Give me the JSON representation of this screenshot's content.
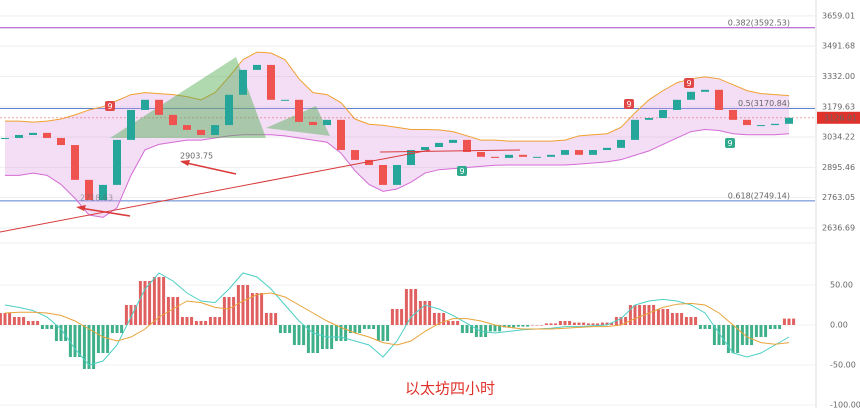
{
  "chart_data": {
    "type": "candlestick",
    "title": "以太坊四小时",
    "log_scale": true,
    "ylim": [
      2588,
      3750
    ],
    "yticks": [
      {
        "value": 3659.01,
        "label": "3659.01"
      },
      {
        "value": 3491.68,
        "label": "3491.68"
      },
      {
        "value": 3332.0,
        "label": "3332.00"
      },
      {
        "value": 3179.63,
        "label": "3179.63"
      },
      {
        "value": 3034.22,
        "label": "3034.22"
      },
      {
        "value": 2895.46,
        "label": "2895.46"
      },
      {
        "value": 2763.05,
        "label": "2763.05"
      },
      {
        "value": 2636.69,
        "label": "2636.69"
      }
    ],
    "last_price": {
      "value": 3126.01,
      "label": "3126.01"
    },
    "fib_levels": [
      {
        "value": 3592.53,
        "label": "0.382(3592.53)",
        "color": "#a646c8"
      },
      {
        "value": 3170.84,
        "label": "0.5(3170.84)",
        "color": "#5b7fd1"
      },
      {
        "value": 2749.14,
        "label": "0.618(2749.14)",
        "color": "#5b7fd1"
      }
    ],
    "annotations": [
      "2903.75",
      "2718.63"
    ],
    "markers": [
      "9",
      "9",
      "9",
      "9",
      "9"
    ],
    "up_color": "#26a69a",
    "down_color": "#ef5350",
    "close": [
      3030,
      3044,
      3054,
      3030,
      2997,
      2840,
      2753,
      2818,
      3021,
      3164,
      3214,
      3140,
      3091,
      3068,
      3044,
      3091,
      3239,
      3366,
      3392,
      3214,
      3214,
      3106,
      3091,
      3116,
      2974,
      2929,
      2906,
      2818,
      2906,
      2974,
      2988,
      3007,
      3021,
      2965,
      2943,
      2938,
      2952,
      2943,
      2943,
      2952,
      2974,
      2952,
      2974,
      2984,
      3021,
      3116,
      3125,
      3164,
      3214,
      3254,
      3264,
      3164,
      3116,
      3091,
      3091,
      3097,
      3126
    ],
    "bands": {
      "upper": [
        3110,
        3110,
        3105,
        3110,
        3120,
        3140,
        3164,
        3180,
        3210,
        3240,
        3250,
        3245,
        3240,
        3230,
        3214,
        3250,
        3330,
        3420,
        3460,
        3455,
        3420,
        3320,
        3250,
        3240,
        3200,
        3120,
        3095,
        3090,
        3080,
        3070,
        3070,
        3068,
        3060,
        3040,
        3020,
        3020,
        3015,
        3015,
        3015,
        3015,
        3020,
        3040,
        3045,
        3050,
        3080,
        3150,
        3214,
        3260,
        3300,
        3320,
        3330,
        3320,
        3290,
        3260,
        3245,
        3240,
        3235
      ],
      "lower": [
        2860,
        2860,
        2870,
        2860,
        2820,
        2760,
        2690,
        2680,
        2720,
        2860,
        2975,
        3000,
        3010,
        3020,
        3020,
        3030,
        3040,
        3045,
        3045,
        3045,
        3040,
        3030,
        3020,
        3010,
        2960,
        2880,
        2820,
        2790,
        2800,
        2830,
        2870,
        2885,
        2890,
        2895,
        2900,
        2905,
        2906,
        2906,
        2906,
        2906,
        2906,
        2910,
        2915,
        2920,
        2930,
        2950,
        2970,
        3000,
        3030,
        3060,
        3070,
        3065,
        3050,
        3045,
        3045,
        3045,
        3050
      ]
    },
    "macd": {
      "ylim": [
        -100,
        100
      ],
      "yticks": [
        {
          "value": 50,
          "label": "50.00"
        },
        {
          "value": 0,
          "label": "0.00"
        },
        {
          "value": -50,
          "label": "-50.00"
        },
        {
          "value": -100,
          "label": "-100.00"
        }
      ],
      "histogram": [
        15,
        10,
        5,
        -5,
        -20,
        -40,
        -55,
        -35,
        -10,
        25,
        55,
        60,
        35,
        10,
        5,
        10,
        35,
        50,
        40,
        15,
        -10,
        -25,
        -35,
        -30,
        -20,
        -10,
        -5,
        -20,
        20,
        45,
        30,
        15,
        5,
        -10,
        -15,
        -8,
        -3,
        -2,
        0,
        2,
        5,
        3,
        2,
        3,
        10,
        25,
        25,
        20,
        15,
        10,
        -5,
        -25,
        -35,
        -25,
        -15,
        -5,
        8
      ],
      "dif": [
        25,
        22,
        18,
        10,
        -5,
        -30,
        -50,
        -45,
        -25,
        10,
        45,
        65,
        55,
        40,
        30,
        28,
        45,
        65,
        60,
        45,
        25,
        5,
        -10,
        -15,
        -15,
        -20,
        -25,
        -40,
        -20,
        10,
        25,
        20,
        12,
        2,
        -8,
        -10,
        -8,
        -6,
        -5,
        -4,
        -2,
        -2,
        -1,
        0,
        8,
        25,
        30,
        32,
        30,
        25,
        15,
        -10,
        -35,
        -40,
        -35,
        -25,
        -15
      ],
      "dea": [
        15,
        16,
        16,
        15,
        12,
        5,
        -5,
        -15,
        -20,
        -15,
        -5,
        10,
        20,
        30,
        28,
        22,
        20,
        30,
        38,
        40,
        35,
        25,
        15,
        5,
        -3,
        -10,
        -15,
        -22,
        -25,
        -20,
        -8,
        2,
        8,
        8,
        5,
        0,
        -3,
        -5,
        -5,
        -5,
        -4,
        -3,
        -2,
        -2,
        0,
        8,
        15,
        22,
        26,
        27,
        25,
        15,
        0,
        -15,
        -22,
        -24,
        -22
      ],
      "dif_color": "#4dcfc4",
      "dea_color": "#e8a33a"
    }
  }
}
